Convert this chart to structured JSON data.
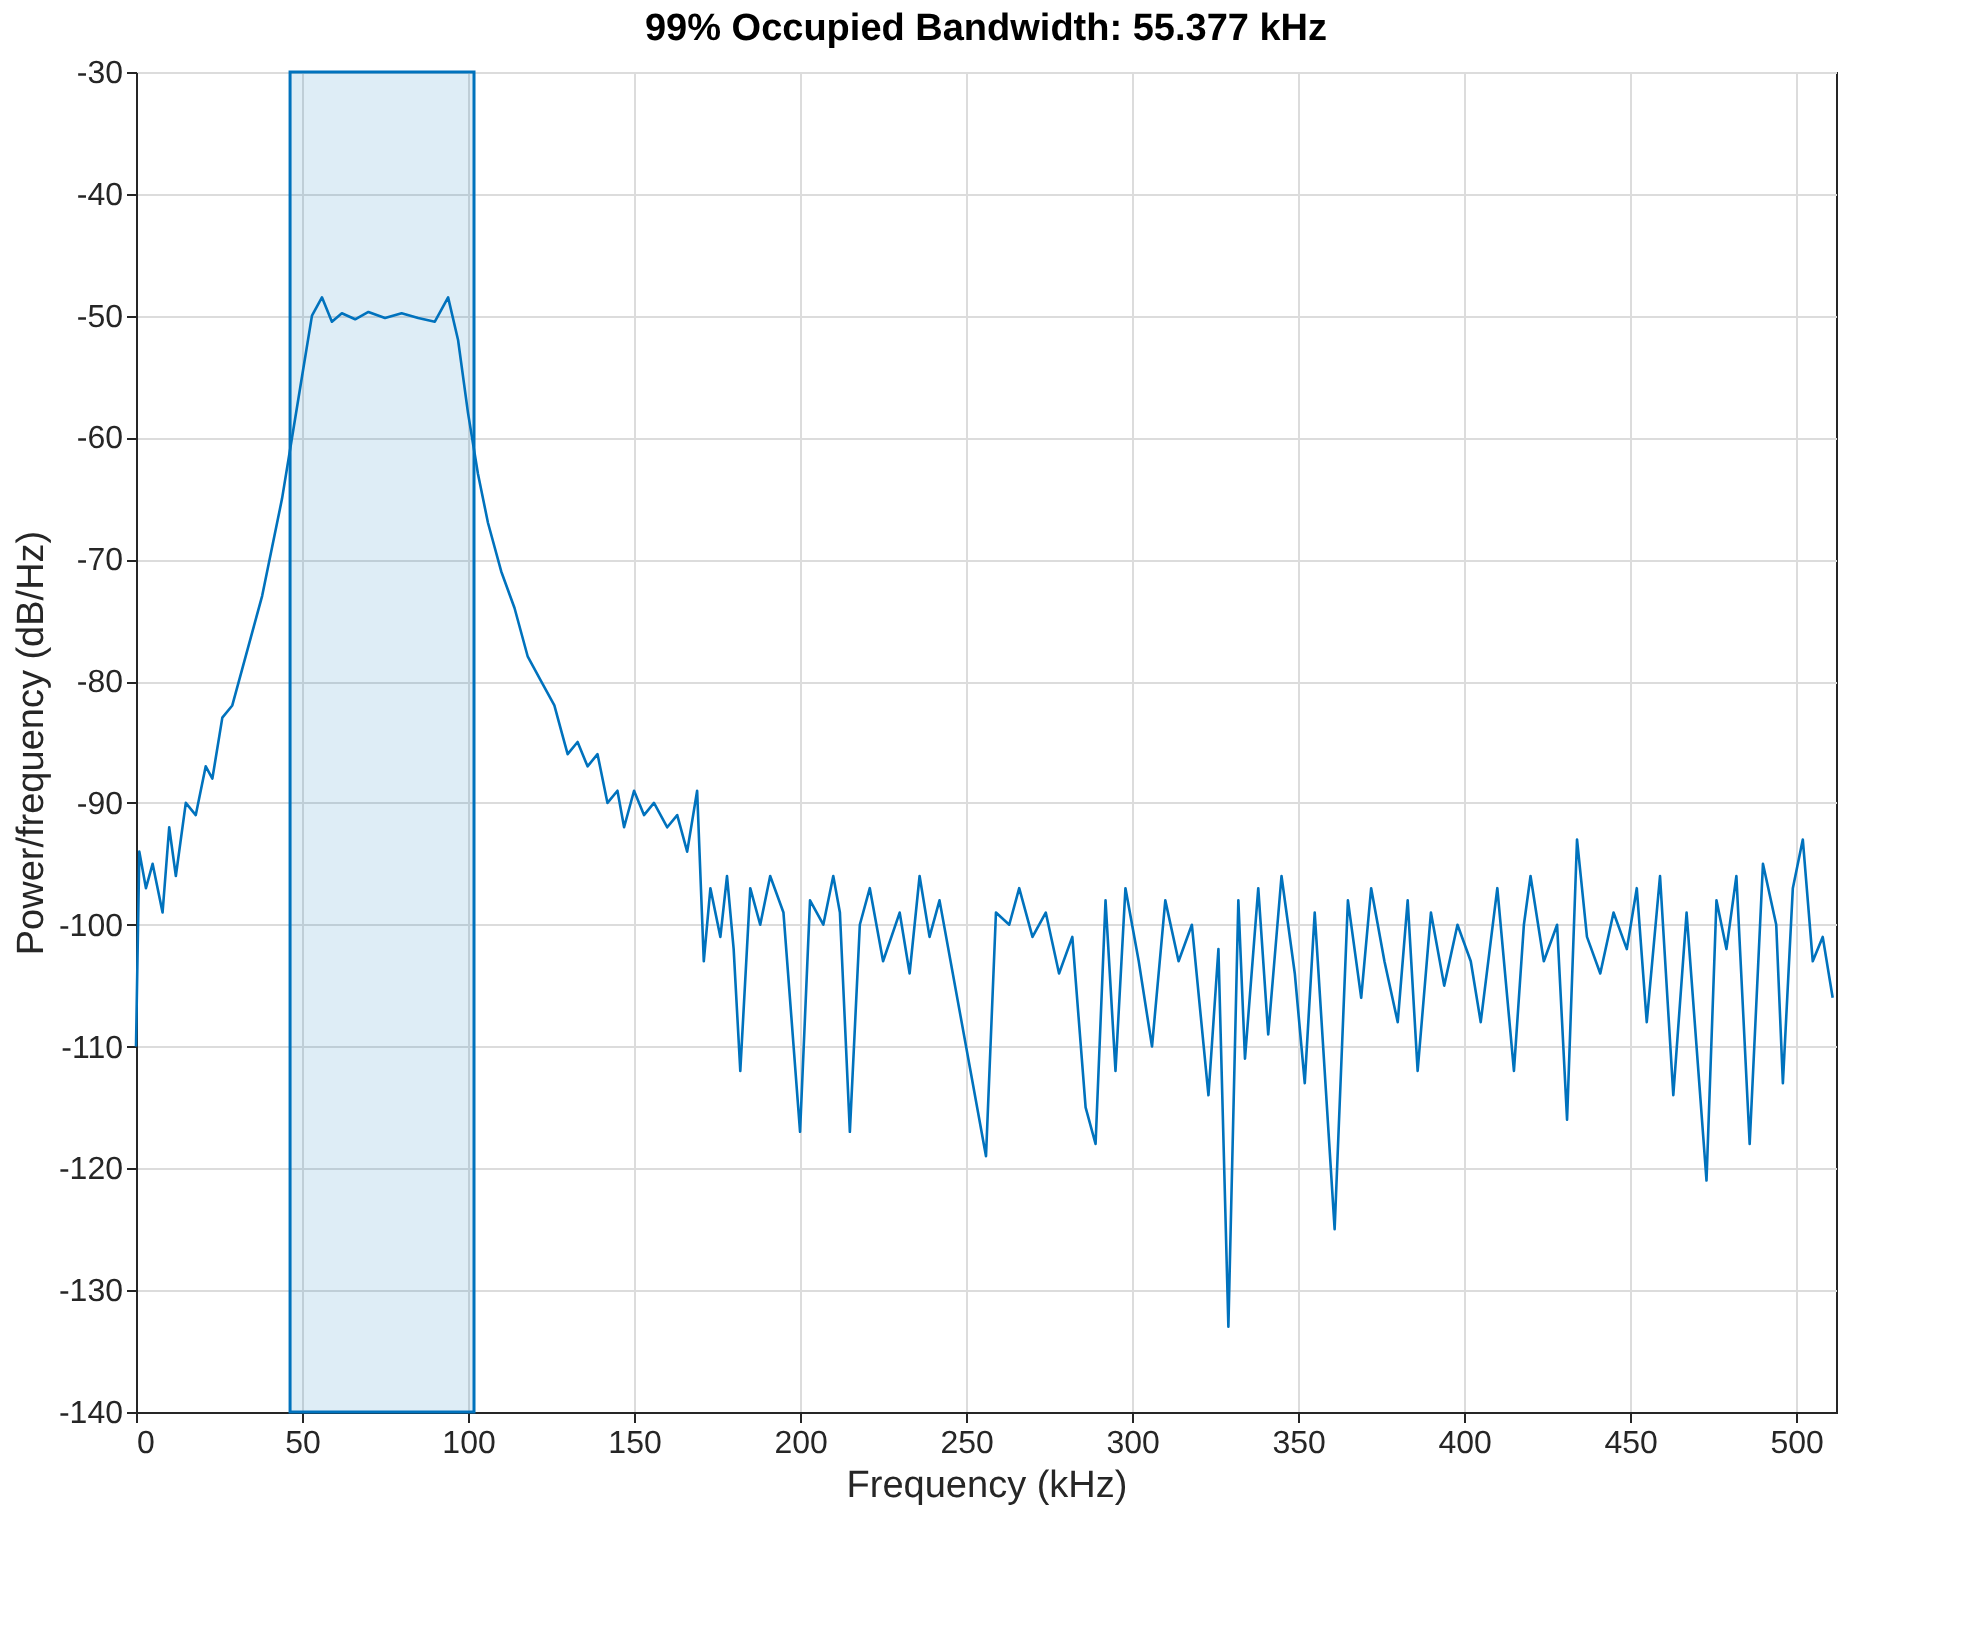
{
  "chart_data": {
    "type": "line",
    "title": "99% Occupied Bandwidth: 55.377 kHz",
    "xlabel": "Frequency (kHz)",
    "ylabel": "Power/frequency (dB/Hz)",
    "x": [
      0,
      1,
      3,
      5,
      8,
      10,
      12,
      15,
      18,
      21,
      23,
      26,
      29,
      32,
      35,
      38,
      41,
      44,
      47,
      50,
      53,
      56,
      59,
      62,
      66,
      70,
      75,
      80,
      85,
      90,
      94,
      97,
      100,
      103,
      106,
      110,
      114,
      118,
      122,
      126,
      128,
      130,
      133,
      136,
      139,
      142,
      145,
      147,
      150,
      153,
      156,
      160,
      163,
      166,
      169,
      171,
      173,
      176,
      178,
      180,
      182,
      185,
      188,
      191,
      195,
      200,
      203,
      207,
      210,
      212,
      215,
      218,
      221,
      225,
      230,
      233,
      236,
      239,
      242,
      246,
      250,
      256,
      259,
      263,
      266,
      270,
      274,
      278,
      282,
      286,
      289,
      292,
      295,
      298,
      302,
      306,
      310,
      314,
      318,
      323,
      326,
      329,
      332,
      334,
      338,
      341,
      345,
      349,
      352,
      355,
      361,
      365,
      369,
      372,
      376,
      380,
      383,
      386,
      390,
      394,
      398,
      402,
      405,
      410,
      413,
      415,
      418,
      420,
      424,
      428,
      431,
      434,
      437,
      441,
      445,
      449,
      452,
      455,
      459,
      463,
      467,
      473,
      476,
      479,
      482,
      486,
      490,
      494,
      496,
      499,
      502,
      505,
      508,
      511
    ],
    "series": [
      {
        "color": "#0072bd",
        "values": [
          -110,
          -94,
          -97,
          -95,
          -99,
          -92,
          -96,
          -90,
          -91,
          -87,
          -88,
          -83,
          -82,
          -79,
          -76,
          -73,
          -69,
          -65,
          -60,
          -55,
          -50,
          -48.5,
          -50.5,
          -49.8,
          -50.3,
          -49.7,
          -50.2,
          -49.8,
          -50.2,
          -50.5,
          -48.5,
          -52,
          -58,
          -63,
          -67,
          -71,
          -74,
          -78,
          -80,
          -82,
          -84,
          -86,
          -85,
          -87,
          -86,
          -90,
          -89,
          -92,
          -89,
          -91,
          -90,
          -92,
          -91,
          -94,
          -89,
          -103,
          -97,
          -101,
          -96,
          -102,
          -112,
          -97,
          -100,
          -96,
          -99,
          -117,
          -98,
          -100,
          -96,
          -99,
          -117,
          -100,
          -97,
          -103,
          -99,
          -104,
          -96,
          -101,
          -98,
          -104,
          -110,
          -119,
          -99,
          -100,
          -97,
          -101,
          -99,
          -104,
          -101,
          -115,
          -118,
          -98,
          -112,
          -97,
          -103,
          -110,
          -98,
          -103,
          -100,
          -114,
          -102,
          -133,
          -98,
          -111,
          -97,
          -109,
          -96,
          -104,
          -113,
          -99,
          -125,
          -98,
          -106,
          -97,
          -103,
          -108,
          -98,
          -112,
          -99,
          -105,
          -100,
          -103,
          -108,
          -97,
          -106,
          -112,
          -100,
          -96,
          -103,
          -100,
          -116,
          -93,
          -101,
          -104,
          -99,
          -102,
          -97,
          -108,
          -96,
          -114,
          -99,
          -121,
          -98,
          -102,
          -96,
          -118,
          -95,
          -100,
          -113,
          -97,
          -93,
          -103,
          -101,
          -106
        ]
      }
    ],
    "bands": [
      {
        "axis": "x",
        "from": 46.4,
        "to": 101.8,
        "color": "#0072bd"
      }
    ],
    "xlim": [
      0,
      512
    ],
    "xticks": [
      0,
      50,
      100,
      150,
      200,
      250,
      300,
      350,
      400,
      450,
      500
    ],
    "ylim": [
      -140,
      -30
    ],
    "yticks": [
      -140,
      -130,
      -120,
      -110,
      -100,
      -90,
      -80,
      -70,
      -60,
      -50,
      -40,
      -30
    ],
    "grid": true,
    "marker": "none",
    "line_style": "solid"
  }
}
